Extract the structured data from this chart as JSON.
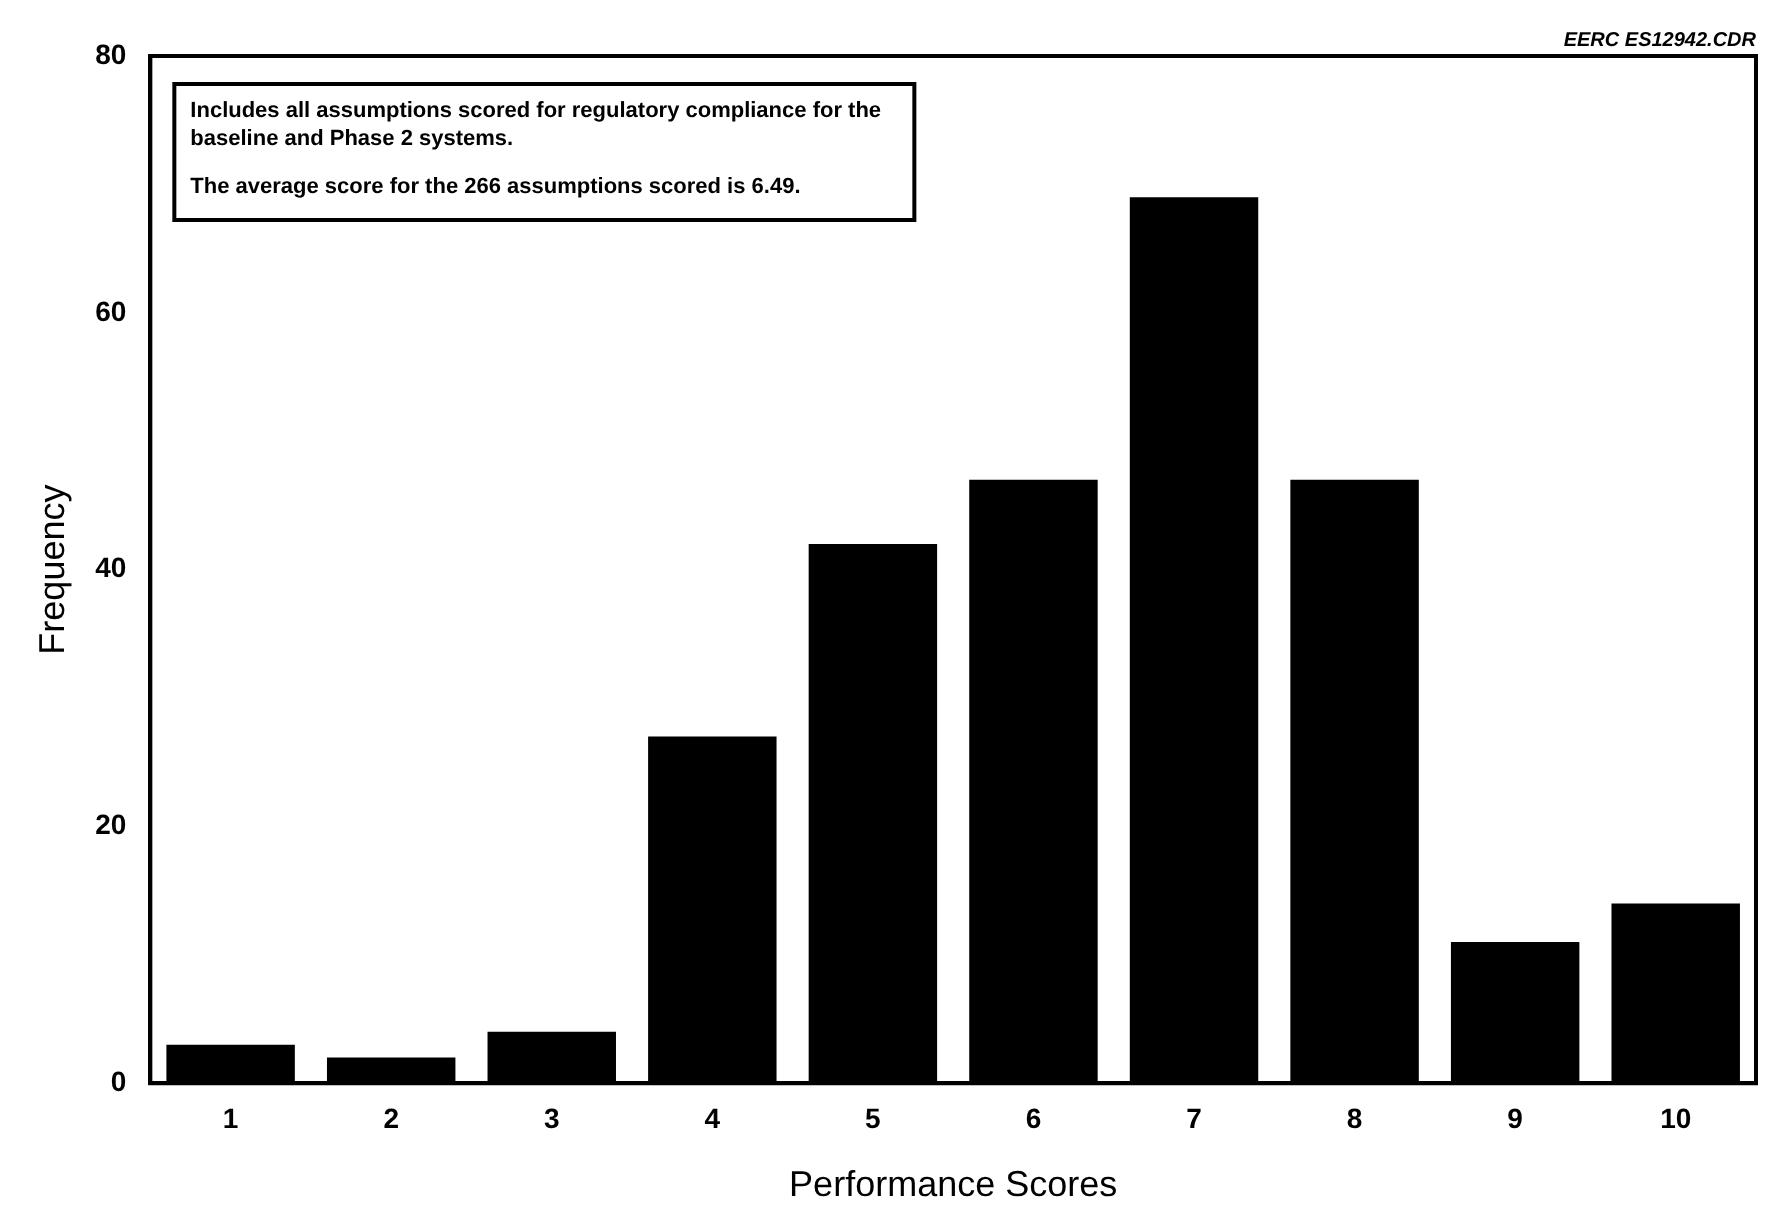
{
  "chart_data": {
    "type": "bar",
    "xlabel": "Performance Scores",
    "ylabel": "Frequency",
    "categories": [
      "1",
      "2",
      "3",
      "4",
      "5",
      "6",
      "7",
      "8",
      "9",
      "10"
    ],
    "values": [
      3,
      2,
      4,
      27,
      42,
      47,
      69,
      47,
      11,
      14
    ],
    "color": "#000000",
    "ylim": [
      0,
      80
    ],
    "yticks": [
      0,
      20,
      40,
      60,
      80
    ],
    "grid": false,
    "legend": false,
    "annotations": [
      "EERC ES12942.CDR",
      "Includes all assumptions scored for regulatory compliance for the baseline and Phase 2 systems.",
      "The average score for the 266 assumptions scored is 6.49."
    ]
  }
}
